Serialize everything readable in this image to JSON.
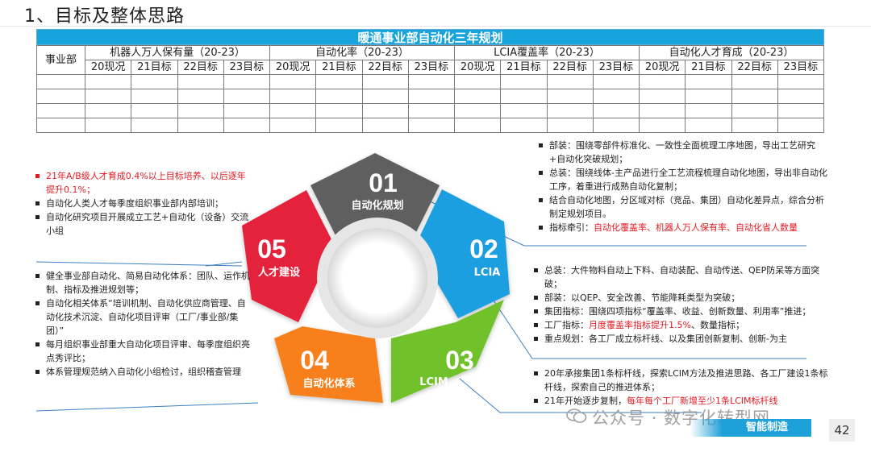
{
  "page_title": "1、目标及整体思路",
  "table": {
    "title": "暖通事业部自动化三年规划",
    "dept_header": "事业部",
    "groups": [
      {
        "label": "机器人万人保有量（20-23）"
      },
      {
        "label": "自动化率（20-23）"
      },
      {
        "label": "LCIA覆盖率（20-23）"
      },
      {
        "label": "自动化人才育成（20-23）"
      }
    ],
    "subcols": [
      "20现况",
      "21目标",
      "22目标",
      "23目标"
    ]
  },
  "segments": {
    "s1": {
      "num": "01",
      "label": "自动化规划",
      "color": "#5e5e5e"
    },
    "s2": {
      "num": "02",
      "label": "LCIA",
      "color": "#1e9fe0"
    },
    "s3": {
      "num": "03",
      "label": "LCIM",
      "color": "#6fc12a"
    },
    "s4": {
      "num": "04",
      "label": "自动化体系",
      "color": "#f77f1b"
    },
    "s5": {
      "num": "05",
      "label": "人才建设",
      "color": "#e5243b"
    }
  },
  "left1": {
    "i1": "21年A/B级人才育成0.4%以上目标培养、以后逐年提升0.1%；",
    "i2": "自动化人类人才每季度组织事业部内部培训；",
    "i3": "自动化研究项目开展成立工艺+自动化（设备）交流小组"
  },
  "left2": {
    "i1": "健全事业部自动化、简易自动化体系：团队、运作机制、指标及推进规划等；",
    "i2": "自动化相关体系“培训机制、自动化供应商管理、自动化技术沉淀、自动化项目评审（工厂/事业部/集团）”",
    "i3": "每月组织事业部重大自动化项目评审、每季度组织亮点秀评比；",
    "i4": "体系管理规范纳入自动化小组检讨，组织稽查管理"
  },
  "right1": {
    "i1": "部装：围绕零部件标准化、一致性全面梳理工序地图，导出工艺研究+自动化突破规划；",
    "i2": "总装：围绕线体-主产品进行全工艺流程梳理自动化地图，导出非自动化工序，着重进行成熟自动化复制；",
    "i3": "结合自动化地图，分区域对标（竞品、集团）自动化差异点，综合分析制定规划项目。",
    "i4_prefix": "指标牵引：",
    "i4_red": "自动化覆盖率、机器人万人保有率、自动化省人数量"
  },
  "right2": {
    "i1": "总装：大件物料自动上下料、自动装配、自动传送、QEP防呆等方面突破；",
    "i2": "部装：以QEP、安全改善、节能降耗类型为突破；",
    "i3": "集团指标：围绕四项指标“覆盖率、收益、创新数量、利用率”推进；",
    "i4_prefix": "工厂指标：",
    "i4_red": "月度覆盖率指标提升1.5%",
    "i4_suffix": "、数量指标；",
    "i5": "重点规划：各工厂成立标杆线、以及集团创新复制、创新-为主"
  },
  "right3": {
    "i1": "20年承接集团1条标杆线，探索LCIM方法及推进思路、各工厂建设1条标杆线，探索自己的推进体系；",
    "i2_prefix": "21年开始逐步复制，",
    "i2_red": "每年每个工厂新增至少1条LCIM标杆线"
  },
  "watermark": "公众号 · 数字化转型网",
  "badge": "智能制造",
  "page_number": "42"
}
